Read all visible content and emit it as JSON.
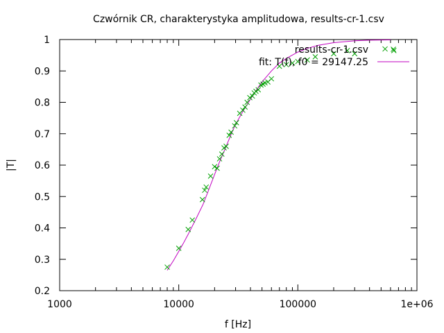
{
  "chart_data": {
    "type": "scatter",
    "title": "Czwórnik CR, charakterystyka amplitudowa, results-cr-1.csv",
    "xlabel": "f [Hz]",
    "ylabel": "|T|",
    "xscale": "log",
    "xlim": [
      1000,
      1000000
    ],
    "ylim": [
      0.2,
      1.0
    ],
    "x_ticks": [
      1000,
      10000,
      100000,
      1000000
    ],
    "x_tick_labels": [
      "1000",
      "10000",
      "100000",
      "1e+06"
    ],
    "y_ticks": [
      0.2,
      0.3,
      0.4,
      0.5,
      0.6,
      0.7,
      0.8,
      0.9,
      1.0
    ],
    "y_tick_labels": [
      "0.2",
      "0.3",
      "0.4",
      "0.5",
      "0.6",
      "0.7",
      "0.8",
      "0.9",
      "1"
    ],
    "grid": false,
    "legend_position": "top-right",
    "series": [
      {
        "name": "results-cr-1.csv",
        "kind": "points",
        "marker": "x",
        "color": "#00a000",
        "x": [
          8000,
          10000,
          12000,
          13000,
          15800,
          16500,
          17000,
          18500,
          20000,
          21000,
          22000,
          23000,
          24000,
          25000,
          26500,
          27500,
          29500,
          30500,
          32500,
          34500,
          36000,
          37500,
          39500,
          41500,
          43000,
          44500,
          46500,
          49000,
          51000,
          53000,
          56000,
          60000,
          70000,
          80000,
          90000,
          100000,
          120000,
          140000,
          200000,
          260000,
          300000,
          540000,
          640000
        ],
        "y": [
          0.275,
          0.335,
          0.395,
          0.425,
          0.49,
          0.52,
          0.53,
          0.565,
          0.595,
          0.59,
          0.62,
          0.635,
          0.655,
          0.66,
          0.695,
          0.705,
          0.725,
          0.735,
          0.765,
          0.775,
          0.785,
          0.8,
          0.815,
          0.82,
          0.83,
          0.835,
          0.84,
          0.855,
          0.858,
          0.862,
          0.865,
          0.875,
          0.915,
          0.92,
          0.925,
          0.93,
          0.935,
          0.945,
          0.955,
          0.965,
          0.955,
          0.97,
          0.965
        ]
      },
      {
        "name": "fit: T(f), f0 = 29147.25",
        "kind": "line",
        "color": "#c000c0",
        "f0": 29147.25,
        "x": [
          8000,
          9000,
          10000,
          11000,
          12000,
          14000,
          16000,
          18000,
          20000,
          22000,
          25000,
          28000,
          30000,
          35000,
          40000,
          45000,
          50000,
          60000,
          70000,
          80000,
          100000,
          120000,
          150000,
          200000,
          300000,
          400000,
          600000
        ],
        "y": [
          0.265,
          0.295,
          0.325,
          0.353,
          0.38,
          0.43,
          0.475,
          0.525,
          0.57,
          0.61,
          0.66,
          0.705,
          0.73,
          0.775,
          0.81,
          0.84,
          0.865,
          0.9,
          0.925,
          0.94,
          0.96,
          0.972,
          0.982,
          0.99,
          0.996,
          0.998,
          0.999
        ]
      }
    ]
  }
}
